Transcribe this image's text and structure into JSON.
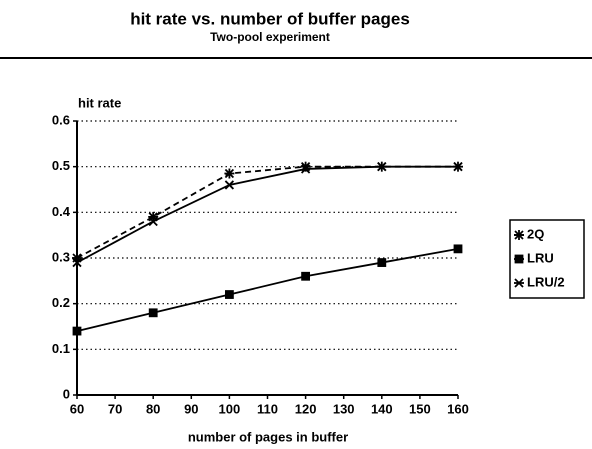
{
  "chart_data": {
    "type": "line",
    "title": "hit rate vs. number of buffer pages",
    "subtitle": "Two-pool experiment",
    "y_label": "hit rate",
    "x_label": "number of pages in buffer",
    "x": [
      60,
      80,
      100,
      120,
      140,
      160
    ],
    "series": [
      {
        "name": "2Q",
        "color": "#000000",
        "style": "dashed",
        "marker": "star",
        "values": [
          0.3,
          0.39,
          0.485,
          0.5,
          0.5,
          0.5
        ]
      },
      {
        "name": "LRU",
        "color": "#000000",
        "style": "solid",
        "marker": "square",
        "values": [
          0.14,
          0.18,
          0.22,
          0.26,
          0.29,
          0.32
        ]
      },
      {
        "name": "LRU/2",
        "color": "#000000",
        "style": "solid",
        "marker": "x",
        "values": [
          0.29,
          0.38,
          0.46,
          0.495,
          0.5,
          0.5
        ]
      }
    ],
    "xlim": [
      60,
      160
    ],
    "xticks": [
      60,
      70,
      80,
      90,
      100,
      110,
      120,
      130,
      140,
      150,
      160
    ],
    "ylim": [
      0,
      0.6
    ],
    "yticks": [
      0,
      0.1,
      0.2,
      0.3,
      0.4,
      0.5,
      0.6
    ],
    "grid": true,
    "legend": "right"
  }
}
